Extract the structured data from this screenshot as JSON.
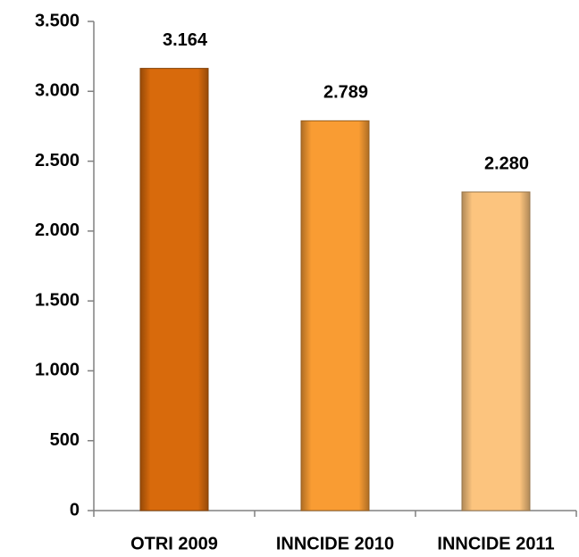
{
  "chart_data": {
    "type": "bar",
    "categories": [
      "OTRI 2009",
      "INNCIDE 2010",
      "INNCIDE 2011"
    ],
    "values": [
      3164,
      2789,
      2280
    ],
    "value_labels": [
      "3.164",
      "2.789",
      "2.280"
    ],
    "colors": [
      "#d86a0c",
      "#f99c33",
      "#fcc47e"
    ],
    "ylim": [
      0,
      3500
    ],
    "yticks": [
      0,
      500,
      {
        "value": 1000,
        "label": "1.000"
      },
      {
        "value": 1500,
        "label": "1.500"
      },
      {
        "value": 2000,
        "label": "2.000"
      },
      {
        "value": 2500,
        "label": "2.500"
      },
      {
        "value": 3000,
        "label": "3.000"
      },
      {
        "value": 3500,
        "label": "3.500"
      }
    ],
    "grid": false
  }
}
